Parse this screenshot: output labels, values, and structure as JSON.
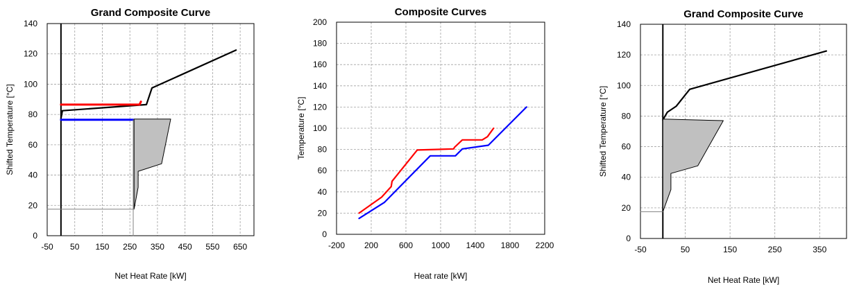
{
  "chart_data": [
    {
      "type": "line",
      "title": "Grand Composite Curve",
      "xlabel": "Net Heat Rate [kW]",
      "ylabel": "Shifted Temperature [°C]",
      "xlim": [
        -50,
        700
      ],
      "ylim": [
        0,
        140
      ],
      "xticks": [
        -50,
        50,
        150,
        250,
        350,
        450,
        550,
        650
      ],
      "yticks": [
        0,
        20,
        40,
        60,
        80,
        100,
        120,
        140
      ],
      "grid": true,
      "series": [
        {
          "color": "#000000",
          "width": 2.2,
          "points": [
            [
              0,
              77.5
            ],
            [
              5,
              82.5
            ],
            [
              310,
              86.5
            ],
            [
              330,
              97.5
            ],
            [
              635,
              122.5
            ]
          ]
        },
        {
          "color": "#ff0000",
          "width": 3,
          "points": [
            [
              0,
              86.5
            ],
            [
              285,
              86.5
            ],
            [
              290,
              88.5
            ]
          ]
        },
        {
          "color": "#0000ff",
          "width": 3,
          "points": [
            [
              0,
              76.5
            ],
            [
              262,
              76.5
            ]
          ]
        },
        {
          "color": "#000000",
          "width": 1,
          "fill": "#c0c0c0",
          "points": [
            [
              265,
              77
            ],
            [
              398,
              77
            ],
            [
              365,
              47.5
            ],
            [
              280,
              42.5
            ],
            [
              280,
              32
            ],
            [
              265,
              17.5
            ]
          ]
        },
        {
          "color": "#808080",
          "width": 1,
          "points": [
            [
              -50,
              17.5
            ],
            [
              265,
              17.5
            ]
          ]
        },
        {
          "color": "#808080",
          "width": 1,
          "points": [
            [
              262,
              76.5
            ],
            [
              262,
              0
            ]
          ]
        }
      ]
    },
    {
      "type": "line",
      "title": "Composite Curves",
      "xlabel": "Heat rate [kW]",
      "ylabel": "Temperature [°C]",
      "xlim": [
        -200,
        2200
      ],
      "ylim": [
        0,
        200
      ],
      "xticks": [
        -200,
        200,
        600,
        1000,
        1400,
        1800,
        2200
      ],
      "yticks": [
        0,
        20,
        40,
        60,
        80,
        100,
        120,
        140,
        160,
        180,
        200
      ],
      "grid": true,
      "series": [
        {
          "color": "#ff0000",
          "width": 2.2,
          "points": [
            [
              60,
              20
            ],
            [
              320,
              35
            ],
            [
              430,
              45
            ],
            [
              440,
              50
            ],
            [
              730,
              79.5
            ],
            [
              1150,
              80.5
            ],
            [
              1160,
              82
            ],
            [
              1250,
              89
            ],
            [
              1480,
              89
            ],
            [
              1540,
              92
            ],
            [
              1610,
              100
            ]
          ]
        },
        {
          "color": "#0000ff",
          "width": 2.2,
          "points": [
            [
              60,
              15
            ],
            [
              350,
              30
            ],
            [
              880,
              74
            ],
            [
              1170,
              74
            ],
            [
              1250,
              80.5
            ],
            [
              1550,
              84
            ],
            [
              1990,
              120
            ]
          ]
        }
      ]
    },
    {
      "type": "line",
      "title": "Grand Composite Curve",
      "xlabel": "Net Heat Rate [kW]",
      "ylabel": "Shifted Temperature [°C]",
      "xlim": [
        -50,
        410
      ],
      "ylim": [
        0,
        140
      ],
      "xticks": [
        -50,
        50,
        150,
        250,
        350
      ],
      "yticks": [
        0,
        20,
        40,
        60,
        80,
        100,
        120,
        140
      ],
      "grid": true,
      "series": [
        {
          "color": "#000000",
          "width": 2.2,
          "points": [
            [
              0,
              77.5
            ],
            [
              10,
              82.5
            ],
            [
              30,
              86.5
            ],
            [
              60,
              97.5
            ],
            [
              365,
              122.5
            ]
          ]
        },
        {
          "color": "#000000",
          "width": 1,
          "fill": "#c0c0c0",
          "points": [
            [
              0,
              78
            ],
            [
              135,
              77
            ],
            [
              78,
              47.5
            ],
            [
              18,
              42.5
            ],
            [
              18,
              32
            ],
            [
              0,
              17.5
            ]
          ]
        },
        {
          "color": "#808080",
          "width": 1,
          "points": [
            [
              -50,
              17.5
            ],
            [
              0,
              17.5
            ]
          ]
        }
      ]
    }
  ]
}
